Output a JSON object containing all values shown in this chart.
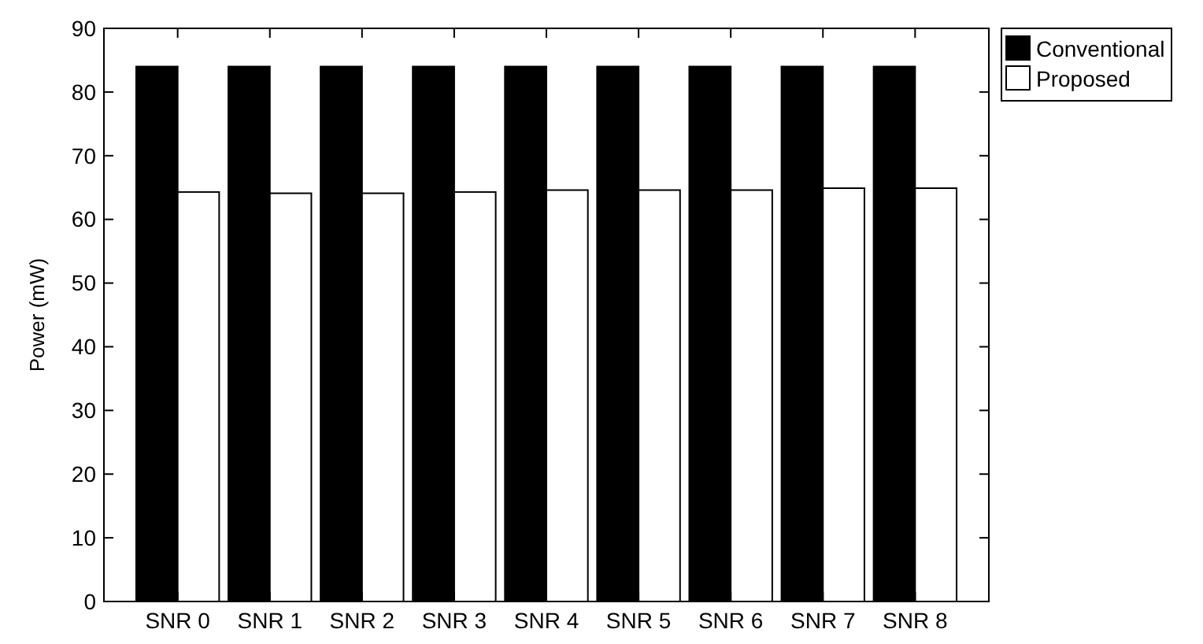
{
  "chart_data": {
    "type": "bar",
    "ylabel": "Power (mW)",
    "categories": [
      "SNR 0",
      "SNR 1",
      "SNR 2",
      "SNR 3",
      "SNR 4",
      "SNR 5",
      "SNR 6",
      "SNR 7",
      "SNR 8"
    ],
    "series": [
      {
        "name": "Conventional",
        "color": "#000000",
        "values": [
          84,
          84,
          84,
          84,
          84,
          84,
          84,
          84,
          84
        ]
      },
      {
        "name": "Proposed",
        "color": "#ffffff",
        "values": [
          64.3,
          64.1,
          64.1,
          64.3,
          64.6,
          64.6,
          64.6,
          64.9,
          64.9
        ]
      }
    ],
    "ylim": [
      0,
      90
    ],
    "yticks": [
      0,
      10,
      20,
      30,
      40,
      50,
      60,
      70,
      80,
      90
    ],
    "legend": "top right",
    "grid": false
  }
}
